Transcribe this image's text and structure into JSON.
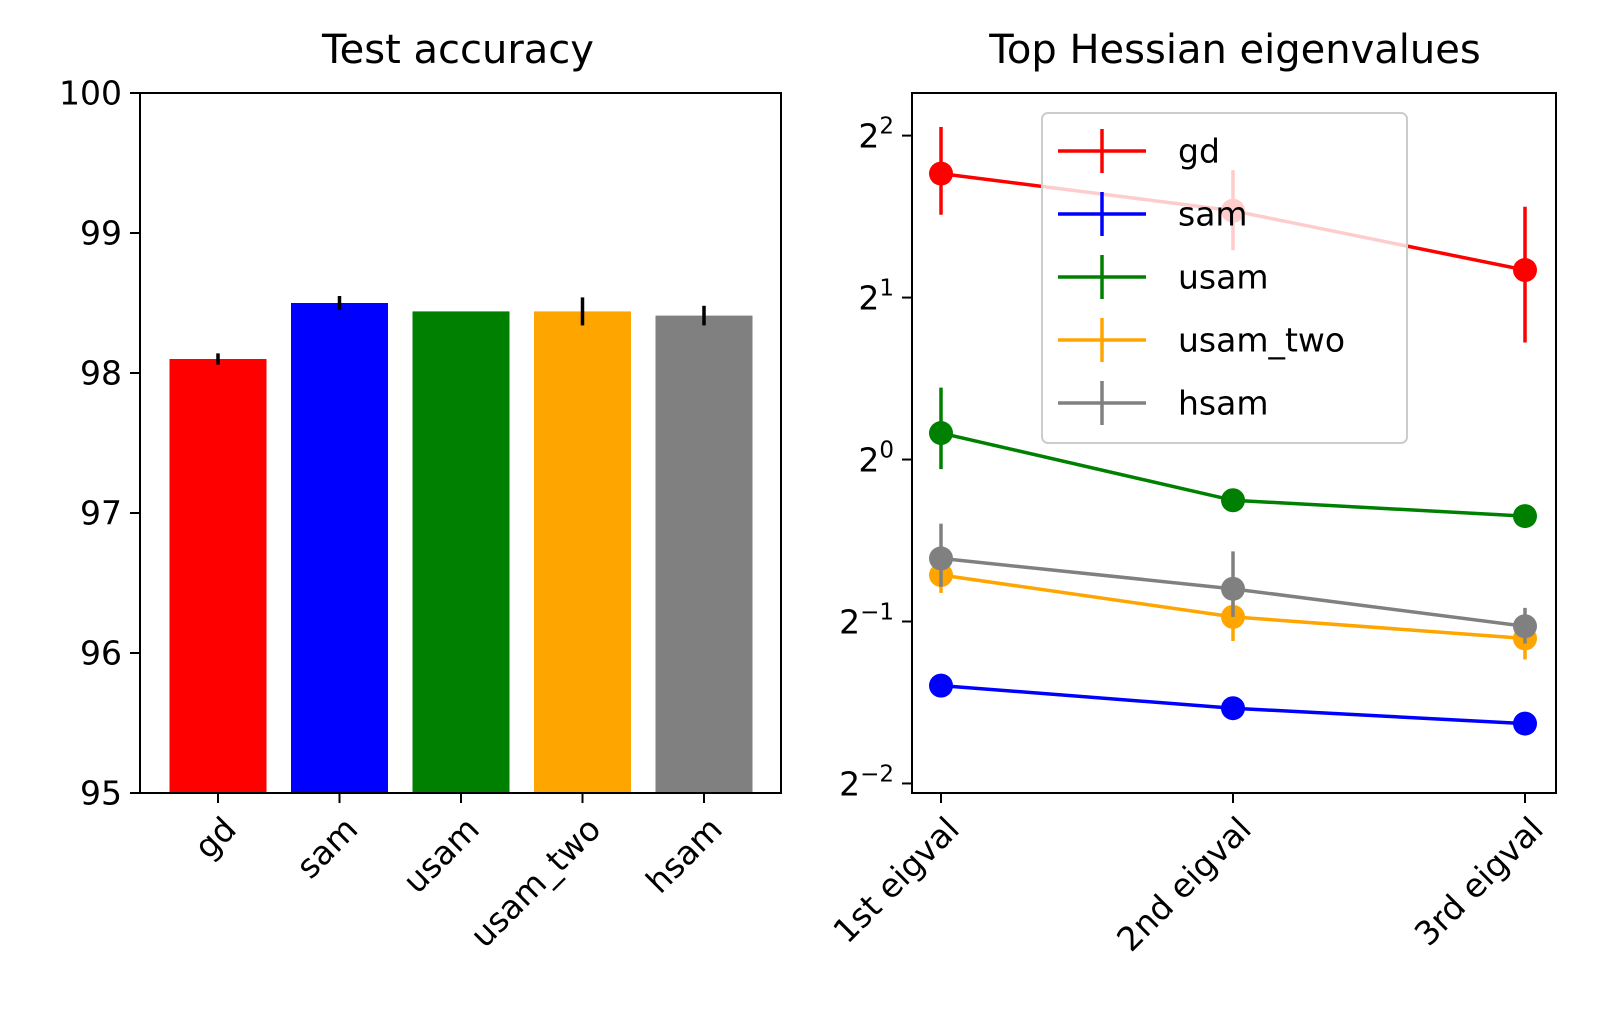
{
  "chart_data": [
    {
      "type": "bar",
      "title": "Test accuracy",
      "xlabel": "",
      "ylabel": "",
      "categories": [
        "gd",
        "sam",
        "usam",
        "usam_two",
        "hsam"
      ],
      "values": [
        98.1,
        98.5,
        98.44,
        98.44,
        98.41
      ],
      "errors": [
        0.04,
        0.05,
        0.0,
        0.1,
        0.07
      ],
      "colors": [
        "#ff0000",
        "#0000ff",
        "#008000",
        "#ffa500",
        "#808080"
      ],
      "ylim": [
        95,
        100
      ],
      "yticks": [
        95,
        96,
        97,
        98,
        99,
        100
      ],
      "ytick_labels": [
        "95",
        "96",
        "97",
        "98",
        "99",
        "100"
      ],
      "grid": false
    },
    {
      "type": "line",
      "title": "Top Hessian eigenvalues",
      "xlabel": "",
      "ylabel": "",
      "categories": [
        "1st eigval",
        "2nd eigval",
        "3rd eigval"
      ],
      "y_scale": "log2",
      "ylim": [
        0.24,
        4.8
      ],
      "yticks": [
        0.25,
        0.5,
        1,
        2,
        4
      ],
      "ytick_labels": [
        {
          "base": "2",
          "exp": "−2"
        },
        {
          "base": "2",
          "exp": "−1"
        },
        {
          "base": "2",
          "exp": "0"
        },
        {
          "base": "2",
          "exp": "1"
        },
        {
          "base": "2",
          "exp": "2"
        }
      ],
      "legend_position": "upper-center",
      "grid": false,
      "series": [
        {
          "name": "gd",
          "color": "#ff0000",
          "values": [
            3.4,
            2.9,
            2.25
          ],
          "err_low": [
            2.85,
            2.45,
            1.65
          ],
          "err_high": [
            4.15,
            3.45,
            2.95
          ]
        },
        {
          "name": "sam",
          "color": "#0000ff",
          "values": [
            0.38,
            0.345,
            0.323
          ],
          "err_low": [
            0.375,
            0.34,
            0.318
          ],
          "err_high": [
            0.385,
            0.35,
            0.328
          ]
        },
        {
          "name": "usam",
          "color": "#008000",
          "values": [
            1.12,
            0.84,
            0.785
          ],
          "err_low": [
            0.96,
            0.835,
            0.78
          ],
          "err_high": [
            1.36,
            0.845,
            0.79
          ]
        },
        {
          "name": "usam_two",
          "color": "#ffa500",
          "values": [
            0.61,
            0.51,
            0.465
          ],
          "err_low": [
            0.565,
            0.46,
            0.425
          ],
          "err_high": [
            0.64,
            0.56,
            0.5
          ]
        },
        {
          "name": "hsam",
          "color": "#808080",
          "values": [
            0.655,
            0.575,
            0.49
          ],
          "err_low": [
            0.58,
            0.51,
            0.455
          ],
          "err_high": [
            0.76,
            0.675,
            0.53
          ]
        }
      ]
    }
  ]
}
